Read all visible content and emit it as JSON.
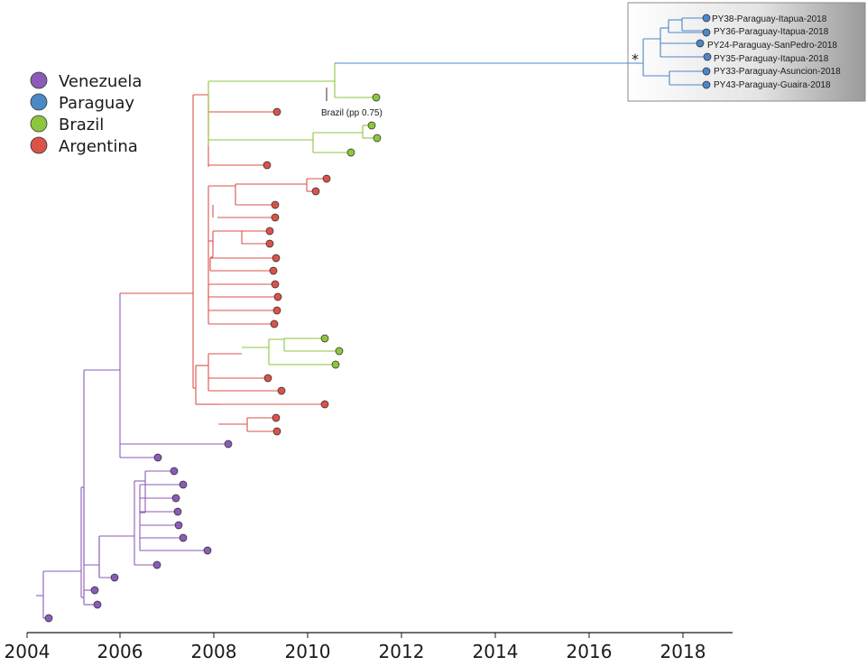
{
  "axis": {
    "ticks": [
      "2004",
      "2006",
      "2008",
      "2010",
      "2012",
      "2014",
      "2016",
      "2018"
    ]
  },
  "legend": [
    {
      "label": "Venezuela",
      "color": "#8a5cb8"
    },
    {
      "label": "Paraguay",
      "color": "#4b88c6"
    },
    {
      "label": "Brazil",
      "color": "#8cc63f"
    },
    {
      "label": "Argentina",
      "color": "#d9534a"
    }
  ],
  "annotations": {
    "brazil_node": "Brazil (pp 0.75)",
    "star": "*"
  },
  "paraguay_tips": [
    "PY38-Paraguay-Itapua-2018",
    "PY36-Paraguay-Itapua-2018",
    "PY24-Paraguay-SanPedro-2018",
    "PY35-Paraguay-Itapua-2018",
    "PY33-Paraguay-Asuncion-2018",
    "PY43-Paraguay-Guaira-2018"
  ]
}
